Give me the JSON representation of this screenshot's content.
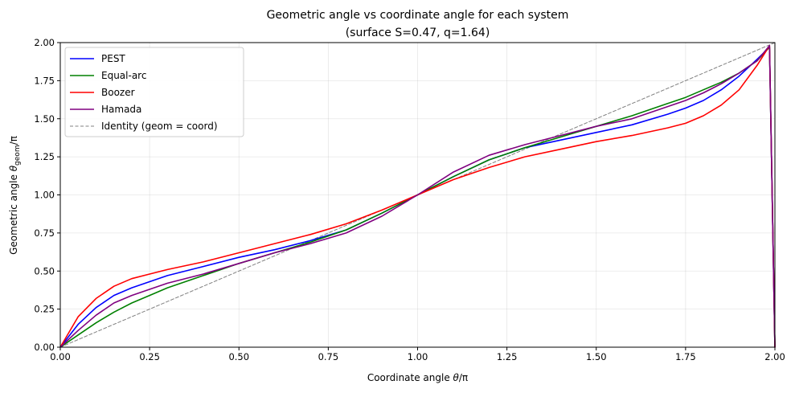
{
  "chart_data": {
    "type": "line",
    "title_line1": "Geometric angle vs coordinate angle for each system",
    "title_line2": "(surface S=0.47, q=1.64)",
    "xlabel_prefix": "Coordinate angle ",
    "xlabel_theta": "θ",
    "xlabel_suffix": "/π",
    "ylabel_prefix": "Geometric angle ",
    "ylabel_theta": "θ",
    "ylabel_sub": "geom",
    "ylabel_suffix": "/π",
    "xlim": [
      0,
      2
    ],
    "ylim": [
      0,
      2
    ],
    "xticks": [
      "0.00",
      "0.25",
      "0.50",
      "0.75",
      "1.00",
      "1.25",
      "1.50",
      "1.75",
      "2.00"
    ],
    "yticks": [
      "0.00",
      "0.25",
      "0.50",
      "0.75",
      "1.00",
      "1.25",
      "1.50",
      "1.75",
      "2.00"
    ],
    "grid": true,
    "legend_position": "top-left",
    "series": [
      {
        "name": "PEST",
        "color": "#0000ff",
        "x": [
          0,
          0.05,
          0.1,
          0.15,
          0.2,
          0.25,
          0.3,
          0.4,
          0.5,
          0.6,
          0.7,
          0.8,
          0.9,
          1.0,
          1.1,
          1.2,
          1.3,
          1.4,
          1.5,
          1.6,
          1.7,
          1.75,
          1.8,
          1.85,
          1.9,
          1.95,
          1.985,
          2.0
        ],
        "y": [
          0,
          0.15,
          0.26,
          0.34,
          0.39,
          0.43,
          0.47,
          0.53,
          0.59,
          0.64,
          0.7,
          0.77,
          0.88,
          1.0,
          1.12,
          1.23,
          1.31,
          1.36,
          1.41,
          1.46,
          1.53,
          1.57,
          1.62,
          1.69,
          1.78,
          1.89,
          1.97,
          0.0
        ]
      },
      {
        "name": "Equal-arc",
        "color": "#008000",
        "x": [
          0,
          0.05,
          0.1,
          0.15,
          0.2,
          0.25,
          0.3,
          0.4,
          0.5,
          0.6,
          0.7,
          0.8,
          0.9,
          1.0,
          1.1,
          1.2,
          1.3,
          1.4,
          1.5,
          1.6,
          1.7,
          1.75,
          1.8,
          1.85,
          1.9,
          1.95,
          1.985,
          2.0
        ],
        "y": [
          0,
          0.08,
          0.16,
          0.23,
          0.29,
          0.34,
          0.39,
          0.47,
          0.55,
          0.62,
          0.69,
          0.77,
          0.88,
          1.0,
          1.12,
          1.23,
          1.31,
          1.38,
          1.45,
          1.52,
          1.6,
          1.64,
          1.69,
          1.74,
          1.8,
          1.88,
          1.97,
          0.0
        ]
      },
      {
        "name": "Boozer",
        "color": "#ff0000",
        "x": [
          0,
          0.05,
          0.1,
          0.15,
          0.2,
          0.25,
          0.3,
          0.4,
          0.5,
          0.6,
          0.7,
          0.8,
          0.9,
          1.0,
          1.1,
          1.2,
          1.3,
          1.4,
          1.5,
          1.6,
          1.7,
          1.75,
          1.8,
          1.85,
          1.9,
          1.95,
          1.985,
          2.0
        ],
        "y": [
          0,
          0.2,
          0.32,
          0.4,
          0.45,
          0.48,
          0.51,
          0.56,
          0.62,
          0.68,
          0.74,
          0.81,
          0.9,
          1.0,
          1.1,
          1.18,
          1.25,
          1.3,
          1.35,
          1.39,
          1.44,
          1.47,
          1.52,
          1.59,
          1.69,
          1.85,
          1.98,
          0.0
        ]
      },
      {
        "name": "Hamada",
        "color": "#800080",
        "x": [
          0,
          0.05,
          0.1,
          0.15,
          0.2,
          0.25,
          0.3,
          0.4,
          0.5,
          0.6,
          0.7,
          0.8,
          0.9,
          1.0,
          1.1,
          1.2,
          1.3,
          1.4,
          1.5,
          1.6,
          1.7,
          1.75,
          1.8,
          1.85,
          1.9,
          1.95,
          1.985,
          2.0
        ],
        "y": [
          0,
          0.11,
          0.21,
          0.29,
          0.34,
          0.38,
          0.42,
          0.48,
          0.55,
          0.62,
          0.68,
          0.75,
          0.86,
          1.0,
          1.15,
          1.26,
          1.33,
          1.39,
          1.45,
          1.5,
          1.58,
          1.62,
          1.67,
          1.73,
          1.8,
          1.88,
          1.98,
          0.0
        ]
      },
      {
        "name": "Identity (geom = coord)",
        "color": "#808080",
        "dashed": true,
        "x": [
          0,
          2
        ],
        "y": [
          0,
          2
        ]
      }
    ]
  }
}
